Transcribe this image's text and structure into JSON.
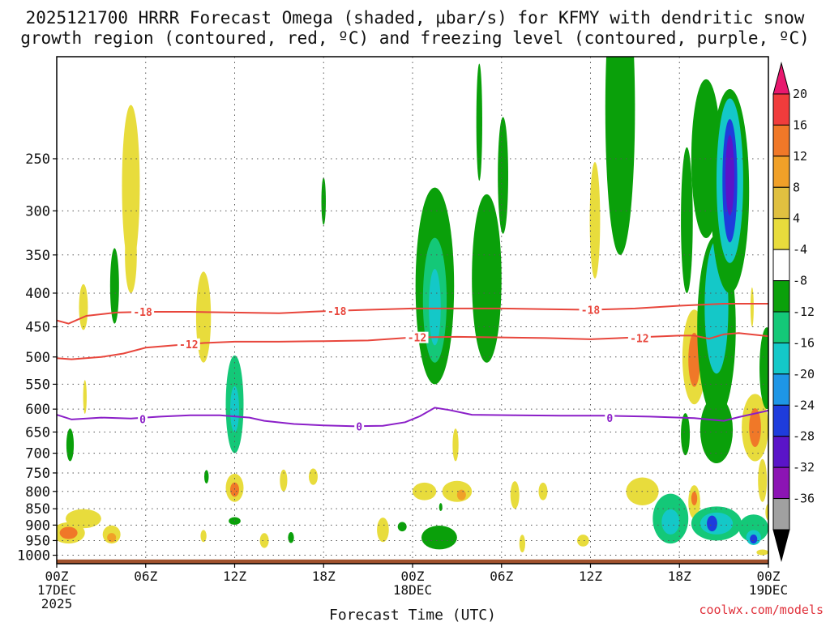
{
  "title_line1": "2025121700 HRRR Forecast Omega (shaded, µbar/s) for KFMY with dendritic snow",
  "title_line2": "growth region (contoured, red, ºC) and freezing level (contoured, purple, ºC)",
  "credit": "coolwx.com/models",
  "colors": {
    "frame": "#000000",
    "grid": "#555555",
    "isotherm": "#e8463c",
    "freezing": "#8b1fc8",
    "ground": "#a0522d"
  },
  "chart_data": {
    "type": "heatmap",
    "xlabel": "Forecast Time (UTC)",
    "ylabel": "",
    "x_range_hours": [
      0,
      48
    ],
    "y_range_hpa": [
      1030,
      175
    ],
    "x_ticks": [
      {
        "h": 0,
        "label": "00Z",
        "sub1": "17DEC",
        "sub2": "2025"
      },
      {
        "h": 6,
        "label": "06Z"
      },
      {
        "h": 12,
        "label": "12Z"
      },
      {
        "h": 18,
        "label": "18Z"
      },
      {
        "h": 24,
        "label": "00Z",
        "sub1": "18DEC"
      },
      {
        "h": 30,
        "label": "06Z"
      },
      {
        "h": 36,
        "label": "12Z"
      },
      {
        "h": 42,
        "label": "18Z"
      },
      {
        "h": 48,
        "label": "00Z",
        "sub1": "19DEC"
      }
    ],
    "y_ticks": [
      {
        "p": 250,
        "label": "250"
      },
      {
        "p": 300,
        "label": "300"
      },
      {
        "p": 350,
        "label": "350"
      },
      {
        "p": 400,
        "label": "400"
      },
      {
        "p": 450,
        "label": "450"
      },
      {
        "p": 500,
        "label": "500"
      },
      {
        "p": 550,
        "label": "550"
      },
      {
        "p": 600,
        "label": "600"
      },
      {
        "p": 650,
        "label": "650"
      },
      {
        "p": 700,
        "label": "700"
      },
      {
        "p": 750,
        "label": "750"
      },
      {
        "p": 800,
        "label": "800"
      },
      {
        "p": 850,
        "label": "850"
      },
      {
        "p": 900,
        "label": "900"
      },
      {
        "p": 950,
        "label": "950"
      },
      {
        "p": 1000,
        "label": "1000"
      }
    ],
    "colorbar": {
      "labels": [
        "20",
        "16",
        "12",
        "8",
        "4",
        "-4",
        "-8",
        "-12",
        "-16",
        "-20",
        "-24",
        "-28",
        "-32",
        "-36"
      ],
      "bins": [
        {
          "color": "#e8186e"
        },
        {
          "color": "#f03c3c"
        },
        {
          "color": "#f07828"
        },
        {
          "color": "#f0a028"
        },
        {
          "color": "#e0c040"
        },
        {
          "color": "#e8dc3c"
        },
        {
          "color": "#ffffff"
        },
        {
          "color": "#0aa00a"
        },
        {
          "color": "#14c878"
        },
        {
          "color": "#14c8c8"
        },
        {
          "color": "#1e96e6"
        },
        {
          "color": "#1e3cdc"
        },
        {
          "color": "#5a14c8"
        },
        {
          "color": "#8c14b4"
        },
        {
          "color": "#a0a0a0"
        },
        {
          "color": "#000000"
        }
      ]
    },
    "regions": [
      {
        "h": 0.8,
        "p": 925,
        "rh": 1.1,
        "rp": 35,
        "omega": 6
      },
      {
        "h": 0.8,
        "p": 925,
        "rh": 0.6,
        "rp": 20,
        "omega": 12
      },
      {
        "h": 1.8,
        "p": 880,
        "rh": 1.2,
        "rp": 30,
        "omega": 5
      },
      {
        "h": 3.7,
        "p": 930,
        "rh": 0.6,
        "rp": 30,
        "omega": 6
      },
      {
        "h": 3.7,
        "p": 940,
        "rh": 0.3,
        "rp": 15,
        "omega": 10
      },
      {
        "h": 1.8,
        "p": 420,
        "rh": 0.3,
        "rp": 35,
        "omega": 5
      },
      {
        "h": 0.9,
        "p": 680,
        "rh": 0.25,
        "rp": 40,
        "omega": -7
      },
      {
        "h": 1.9,
        "p": 575,
        "rh": 0.12,
        "rp": 35,
        "omega": 5
      },
      {
        "h": 3.9,
        "p": 390,
        "rh": 0.3,
        "rp": 55,
        "omega": -7
      },
      {
        "h": 5.0,
        "p": 275,
        "rh": 0.6,
        "rp": 90,
        "omega": 5
      },
      {
        "h": 5.0,
        "p": 350,
        "rh": 0.4,
        "rp": 50,
        "omega": 5
      },
      {
        "h": 9.9,
        "p": 435,
        "rh": 0.5,
        "rp": 75,
        "omega": 5
      },
      {
        "h": 9.9,
        "p": 935,
        "rh": 0.2,
        "rp": 20,
        "omega": 5
      },
      {
        "h": 10.1,
        "p": 760,
        "rh": 0.15,
        "rp": 18,
        "omega": -7
      },
      {
        "h": 12.0,
        "p": 590,
        "rh": 0.6,
        "rp": 110,
        "omega": -8
      },
      {
        "h": 12.0,
        "p": 600,
        "rh": 0.3,
        "rp": 50,
        "omega": -14
      },
      {
        "h": 12.0,
        "p": 790,
        "rh": 0.6,
        "rp": 40,
        "omega": 6
      },
      {
        "h": 12.0,
        "p": 795,
        "rh": 0.3,
        "rp": 20,
        "omega": 12
      },
      {
        "h": 12.0,
        "p": 887,
        "rh": 0.4,
        "rp": 12,
        "omega": -7
      },
      {
        "h": 14.0,
        "p": 950,
        "rh": 0.3,
        "rp": 25,
        "omega": 5
      },
      {
        "h": 15.3,
        "p": 770,
        "rh": 0.25,
        "rp": 30,
        "omega": 5
      },
      {
        "h": 17.3,
        "p": 760,
        "rh": 0.3,
        "rp": 22,
        "omega": 5
      },
      {
        "h": 15.8,
        "p": 940,
        "rh": 0.2,
        "rp": 18,
        "omega": -7
      },
      {
        "h": 18.0,
        "p": 290,
        "rh": 0.15,
        "rp": 25,
        "omega": -7
      },
      {
        "h": 22.0,
        "p": 915,
        "rh": 0.4,
        "rp": 40,
        "omega": 5
      },
      {
        "h": 23.3,
        "p": 905,
        "rh": 0.3,
        "rp": 15,
        "omega": -7
      },
      {
        "h": 25.5,
        "p": 390,
        "rh": 1.3,
        "rp": 160,
        "omega": -7
      },
      {
        "h": 25.5,
        "p": 410,
        "rh": 0.8,
        "rp": 100,
        "omega": -10
      },
      {
        "h": 25.5,
        "p": 420,
        "rh": 0.4,
        "rp": 60,
        "omega": -14
      },
      {
        "h": 29.0,
        "p": 380,
        "rh": 1.0,
        "rp": 130,
        "omega": -7
      },
      {
        "h": 29.0,
        "p": 350,
        "rh": 0.4,
        "rp": 50,
        "omega": -7
      },
      {
        "h": 30.1,
        "p": 265,
        "rh": 0.35,
        "rp": 60,
        "omega": -7
      },
      {
        "h": 28.5,
        "p": 220,
        "rh": 0.2,
        "rp": 50,
        "omega": -7
      },
      {
        "h": 25.8,
        "p": 940,
        "rh": 1.2,
        "rp": 40,
        "omega": -7
      },
      {
        "h": 24.8,
        "p": 800,
        "rh": 0.8,
        "rp": 25,
        "omega": 5
      },
      {
        "h": 27.0,
        "p": 800,
        "rh": 1.0,
        "rp": 30,
        "omega": 5
      },
      {
        "h": 27.3,
        "p": 810,
        "rh": 0.3,
        "rp": 15,
        "omega": 10
      },
      {
        "h": 26.9,
        "p": 680,
        "rh": 0.2,
        "rp": 40,
        "omega": 5
      },
      {
        "h": 25.9,
        "p": 845,
        "rh": 0.1,
        "rp": 12,
        "omega": -7
      },
      {
        "h": 30.9,
        "p": 810,
        "rh": 0.3,
        "rp": 40,
        "omega": 5
      },
      {
        "h": 31.4,
        "p": 960,
        "rh": 0.2,
        "rp": 30,
        "omega": 5
      },
      {
        "h": 32.8,
        "p": 800,
        "rh": 0.3,
        "rp": 25,
        "omega": 5
      },
      {
        "h": 36.3,
        "p": 310,
        "rh": 0.35,
        "rp": 70,
        "omega": 5
      },
      {
        "h": 35.5,
        "p": 950,
        "rh": 0.4,
        "rp": 20,
        "omega": 5
      },
      {
        "h": 38.0,
        "p": 210,
        "rh": 1.0,
        "rp": 140,
        "omega": -7
      },
      {
        "h": 39.5,
        "p": 800,
        "rh": 1.1,
        "rp": 40,
        "omega": 5
      },
      {
        "h": 41.4,
        "p": 880,
        "rh": 1.2,
        "rp": 80,
        "omega": -8
      },
      {
        "h": 41.4,
        "p": 890,
        "rh": 0.6,
        "rp": 40,
        "omega": -13
      },
      {
        "h": 42.5,
        "p": 310,
        "rh": 0.4,
        "rp": 90,
        "omega": -7
      },
      {
        "h": 43.8,
        "p": 250,
        "rh": 1.0,
        "rp": 80,
        "omega": -7
      },
      {
        "h": 43.0,
        "p": 500,
        "rh": 0.8,
        "rp": 90,
        "omega": 6
      },
      {
        "h": 43.0,
        "p": 505,
        "rh": 0.4,
        "rp": 50,
        "omega": 12
      },
      {
        "h": 43.0,
        "p": 830,
        "rh": 0.4,
        "rp": 50,
        "omega": 6
      },
      {
        "h": 43.0,
        "p": 820,
        "rh": 0.2,
        "rp": 20,
        "omega": 13
      },
      {
        "h": 44.5,
        "p": 450,
        "rh": 1.3,
        "rp": 170,
        "omega": -7
      },
      {
        "h": 44.5,
        "p": 420,
        "rh": 0.8,
        "rp": 110,
        "omega": -13
      },
      {
        "h": 45.4,
        "p": 280,
        "rh": 1.3,
        "rp": 120,
        "omega": -7
      },
      {
        "h": 45.4,
        "p": 270,
        "rh": 0.9,
        "rp": 90,
        "omega": -13
      },
      {
        "h": 45.4,
        "p": 270,
        "rh": 0.5,
        "rp": 65,
        "omega": -20
      },
      {
        "h": 45.4,
        "p": 265,
        "rh": 0.3,
        "rp": 40,
        "omega": -27
      },
      {
        "h": 44.5,
        "p": 645,
        "rh": 1.1,
        "rp": 80,
        "omega": -7
      },
      {
        "h": 44.5,
        "p": 895,
        "rh": 1.7,
        "rp": 55,
        "omega": -8
      },
      {
        "h": 44.5,
        "p": 895,
        "rh": 1.1,
        "rp": 35,
        "omega": -12
      },
      {
        "h": 44.2,
        "p": 895,
        "rh": 0.35,
        "rp": 25,
        "omega": -21
      },
      {
        "h": 47.0,
        "p": 910,
        "rh": 1.0,
        "rp": 45,
        "omega": -8
      },
      {
        "h": 47.0,
        "p": 940,
        "rh": 0.5,
        "rp": 25,
        "omega": -14
      },
      {
        "h": 47.0,
        "p": 945,
        "rh": 0.25,
        "rp": 15,
        "omega": -22
      },
      {
        "h": 47.1,
        "p": 640,
        "rh": 0.9,
        "rp": 80,
        "omega": 6
      },
      {
        "h": 47.1,
        "p": 640,
        "rh": 0.4,
        "rp": 45,
        "omega": 12
      },
      {
        "h": 47.6,
        "p": 770,
        "rh": 0.3,
        "rp": 60,
        "omega": 5
      },
      {
        "h": 47.9,
        "p": 520,
        "rh": 0.5,
        "rp": 80,
        "omega": -7
      },
      {
        "h": 46.9,
        "p": 420,
        "rh": 0.1,
        "rp": 30,
        "omega": 5
      },
      {
        "h": 47.6,
        "p": 990,
        "rh": 0.4,
        "rp": 10,
        "omega": 5
      },
      {
        "h": 48.0,
        "p": 860,
        "rh": 0.2,
        "rp": 25,
        "omega": 5
      },
      {
        "h": 42.4,
        "p": 655,
        "rh": 0.3,
        "rp": 50,
        "omega": -7
      }
    ],
    "contours": [
      {
        "value": "-18",
        "label": "-18",
        "kind": "isotherm",
        "points": [
          [
            0,
            440
          ],
          [
            0.8,
            445
          ],
          [
            2,
            433
          ],
          [
            4,
            428
          ],
          [
            6,
            427
          ],
          [
            9,
            427
          ],
          [
            12,
            428
          ],
          [
            15,
            429
          ],
          [
            18,
            426
          ],
          [
            21,
            424
          ],
          [
            24,
            422
          ],
          [
            27,
            422
          ],
          [
            30,
            422
          ],
          [
            33,
            423
          ],
          [
            36,
            424
          ],
          [
            39,
            422
          ],
          [
            42,
            418
          ],
          [
            45,
            415
          ],
          [
            48,
            415
          ]
        ],
        "label_positions": [
          [
            5.8,
            427
          ],
          [
            18.9,
            426
          ],
          [
            36,
            424
          ]
        ]
      },
      {
        "value": "-12",
        "label": "-12",
        "kind": "isotherm",
        "points": [
          [
            0,
            502
          ],
          [
            1,
            504
          ],
          [
            3,
            500
          ],
          [
            4.5,
            494
          ],
          [
            6,
            484
          ],
          [
            8,
            480
          ],
          [
            10,
            476
          ],
          [
            12,
            474
          ],
          [
            15,
            474
          ],
          [
            18,
            473
          ],
          [
            21,
            472
          ],
          [
            24,
            467
          ],
          [
            27,
            466
          ],
          [
            30,
            467
          ],
          [
            33,
            468
          ],
          [
            36,
            470
          ],
          [
            39,
            467
          ],
          [
            42,
            464
          ],
          [
            43,
            464
          ],
          [
            44,
            469
          ],
          [
            45,
            462
          ],
          [
            46,
            460
          ],
          [
            48,
            465
          ]
        ],
        "label_positions": [
          [
            8.9,
            478
          ],
          [
            24.3,
            467
          ],
          [
            39.3,
            468
          ]
        ]
      },
      {
        "value": "0",
        "label": "0",
        "kind": "freezing",
        "points": [
          [
            0,
            612
          ],
          [
            1,
            622
          ],
          [
            3,
            618
          ],
          [
            5,
            620
          ],
          [
            7,
            616
          ],
          [
            9,
            613
          ],
          [
            11,
            613
          ],
          [
            13,
            618
          ],
          [
            14,
            625
          ],
          [
            16,
            632
          ],
          [
            18,
            635
          ],
          [
            20,
            637
          ],
          [
            22,
            636
          ],
          [
            23.5,
            628
          ],
          [
            24.5,
            615
          ],
          [
            25.5,
            597
          ],
          [
            26.5,
            602
          ],
          [
            28,
            612
          ],
          [
            31,
            613
          ],
          [
            34,
            614
          ],
          [
            37,
            614
          ],
          [
            40,
            616
          ],
          [
            43,
            619
          ],
          [
            45,
            625
          ],
          [
            46,
            617
          ],
          [
            48,
            603
          ]
        ],
        "label_positions": [
          [
            5.8,
            621
          ],
          [
            20.4,
            637
          ],
          [
            37.3,
            619
          ]
        ]
      }
    ],
    "ground_level_hpa": 1015
  }
}
